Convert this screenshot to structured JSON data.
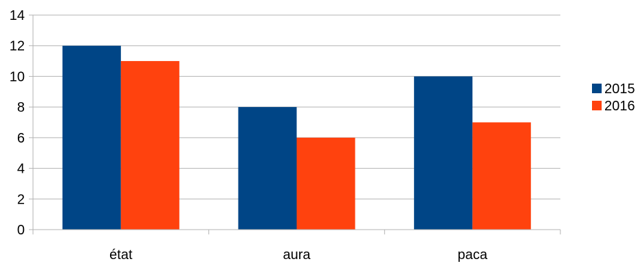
{
  "chart_data": {
    "type": "bar",
    "categories": [
      "état",
      "aura",
      "paca"
    ],
    "series": [
      {
        "name": "2015",
        "values": [
          12,
          8,
          10
        ],
        "color": "#004586"
      },
      {
        "name": "2016",
        "values": [
          11,
          6,
          7
        ],
        "color": "#ff420e"
      }
    ],
    "y_ticks": [
      "0",
      "2",
      "4",
      "6",
      "8",
      "10",
      "12",
      "14"
    ],
    "ylim": [
      0,
      14
    ],
    "y_step": 2,
    "grid": true,
    "gridline_color": "#b3b3b3",
    "legend_position": "right"
  }
}
